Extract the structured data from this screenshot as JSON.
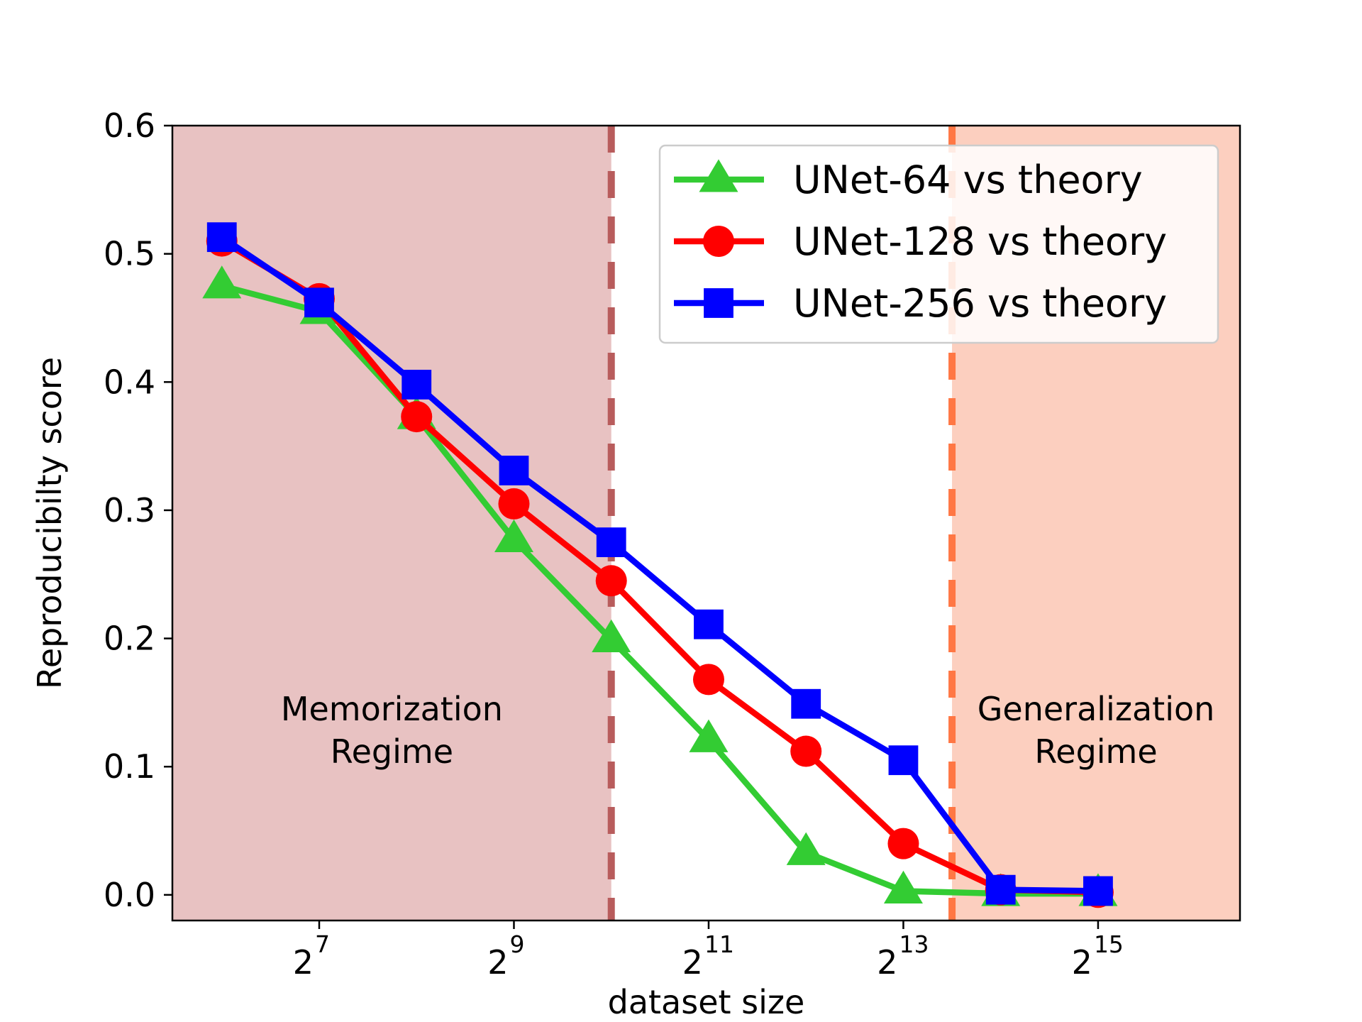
{
  "chart_data": {
    "type": "line",
    "xlabel": "dataset size",
    "ylabel": "Reproducibilty score",
    "x_scale": "log2",
    "x": [
      64,
      128,
      256,
      512,
      1024,
      2048,
      4096,
      8192,
      16384,
      32768
    ],
    "xlim": [
      45,
      90000
    ],
    "ylim": [
      -0.02,
      0.6
    ],
    "yticks": [
      {
        "value": 0.0,
        "label": "0.0"
      },
      {
        "value": 0.1,
        "label": "0.1"
      },
      {
        "value": 0.2,
        "label": "0.2"
      },
      {
        "value": 0.3,
        "label": "0.3"
      },
      {
        "value": 0.4,
        "label": "0.4"
      },
      {
        "value": 0.5,
        "label": "0.5"
      },
      {
        "value": 0.6,
        "label": "0.6"
      }
    ],
    "xticks": [
      {
        "value": 128,
        "base": "2",
        "exp": "7"
      },
      {
        "value": 512,
        "base": "2",
        "exp": "9"
      },
      {
        "value": 2048,
        "base": "2",
        "exp": "11"
      },
      {
        "value": 8192,
        "base": "2",
        "exp": "13"
      },
      {
        "value": 32768,
        "base": "2",
        "exp": "15"
      }
    ],
    "series": [
      {
        "name": "UNet-64 vs theory",
        "color": "#33cc33",
        "marker": "triangle",
        "values": [
          0.475,
          0.455,
          0.373,
          0.277,
          0.199,
          0.121,
          0.033,
          0.003,
          0.001,
          0.001
        ]
      },
      {
        "name": "UNet-128 vs theory",
        "color": "#ff0000",
        "marker": "circle",
        "values": [
          0.51,
          0.465,
          0.373,
          0.305,
          0.245,
          0.168,
          0.112,
          0.04,
          0.004,
          0.002
        ]
      },
      {
        "name": "UNet-256 vs theory",
        "color": "#0000ff",
        "marker": "square",
        "values": [
          0.513,
          0.462,
          0.398,
          0.331,
          0.275,
          0.211,
          0.149,
          0.105,
          0.004,
          0.003
        ]
      }
    ],
    "regions": [
      {
        "from": 45,
        "to": 1024,
        "color": "#e8c2c2",
        "label_lines": [
          "Memorization",
          "Regime"
        ]
      },
      {
        "from": 11585,
        "to": 90000,
        "color": "#fccfbf",
        "label_lines": [
          "Generalization",
          "Regime"
        ]
      }
    ],
    "vlines": [
      {
        "x": 1024,
        "color": "#b85c5c"
      },
      {
        "x": 11585,
        "color": "#ff7744"
      }
    ],
    "legend_position": "top-right",
    "grid": false
  }
}
